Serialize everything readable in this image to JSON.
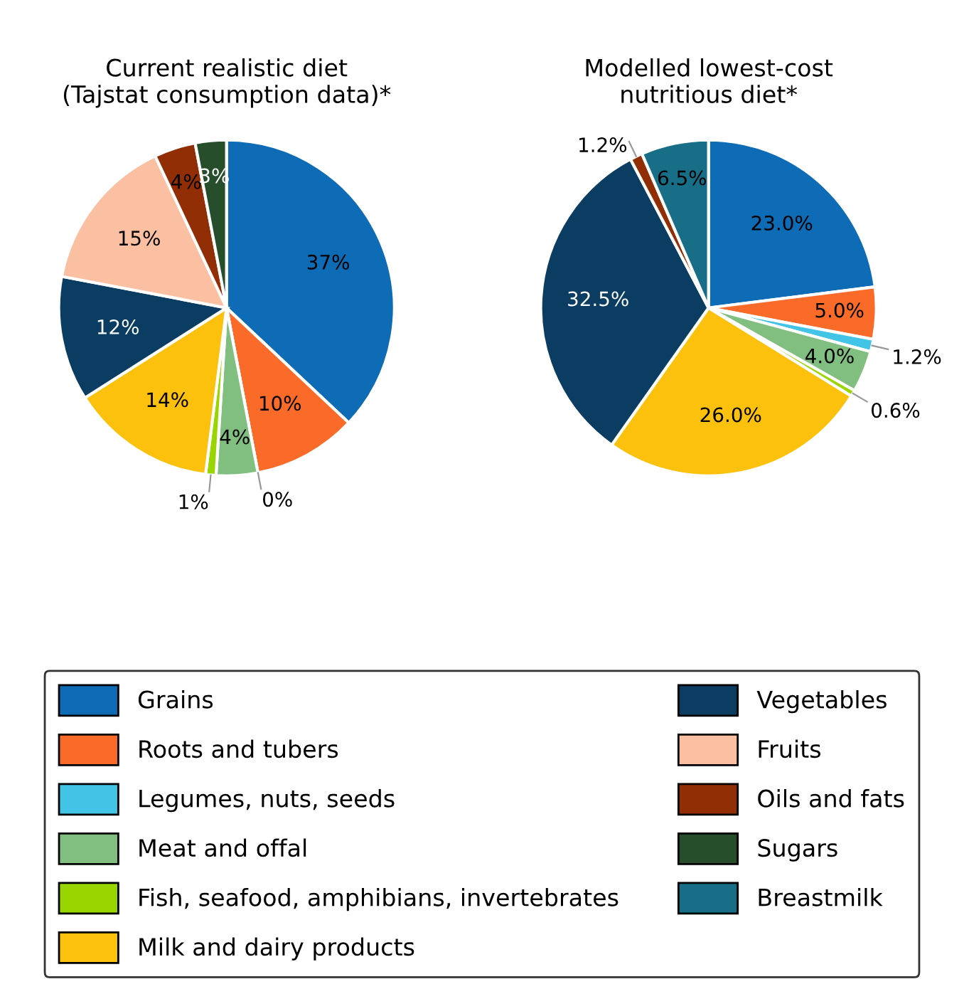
{
  "chart_data": [
    {
      "type": "pie",
      "title": "Current realistic diet\n(Tajstat consumption data)*",
      "categories": [
        "Grains",
        "Roots and tubers",
        "Legumes, nuts, seeds",
        "Meat and offal",
        "Fish, seafood, amphibians, invertebrates",
        "Milk and dairy products",
        "Vegetables",
        "Fruits",
        "Oils and fats",
        "Sugars",
        "Breastmilk"
      ],
      "values": [
        37,
        10,
        0,
        4,
        1,
        14,
        12,
        15,
        4,
        3,
        null
      ],
      "value_labels": [
        "37%",
        "10%",
        null,
        "4%",
        "1%",
        "14%",
        "12%",
        "15%",
        "4%",
        "3%",
        null
      ],
      "colors": [
        "#0e6bb5",
        "#fa6a28",
        "#41c4e6",
        "#80bf80",
        "#99d600",
        "#fbc10c",
        "#0b3c62",
        "#fbbfa2",
        "#912e05",
        "#274e2a",
        "#176e86"
      ],
      "annotations": [
        "0%"
      ],
      "legend": "bottom"
    },
    {
      "type": "pie",
      "title": "Modelled lowest-cost\nnutritious diet*",
      "values": [
        23.0,
        5.0,
        1.2,
        4.0,
        0.6,
        26.0,
        32.5,
        null,
        1.2,
        null,
        6.5
      ],
      "categories": [
        null,
        null,
        null,
        null,
        null,
        null,
        null,
        null,
        null,
        null,
        null
      ],
      "value_labels": [
        "23.0%",
        "5.0%",
        "1.2%",
        "4.0%",
        "0.6%",
        "26.0%",
        "32.5%",
        null,
        "1.2%",
        null,
        "6.5%"
      ],
      "colors": [
        "#0e6bb5",
        "#fa6a28",
        "#41c4e6",
        "#80bf80",
        "#99d600",
        "#fbc10c",
        "#0b3c62",
        "#fbbfa2",
        "#912e05",
        "#274e2a",
        "#176e86"
      ]
    }
  ]
}
